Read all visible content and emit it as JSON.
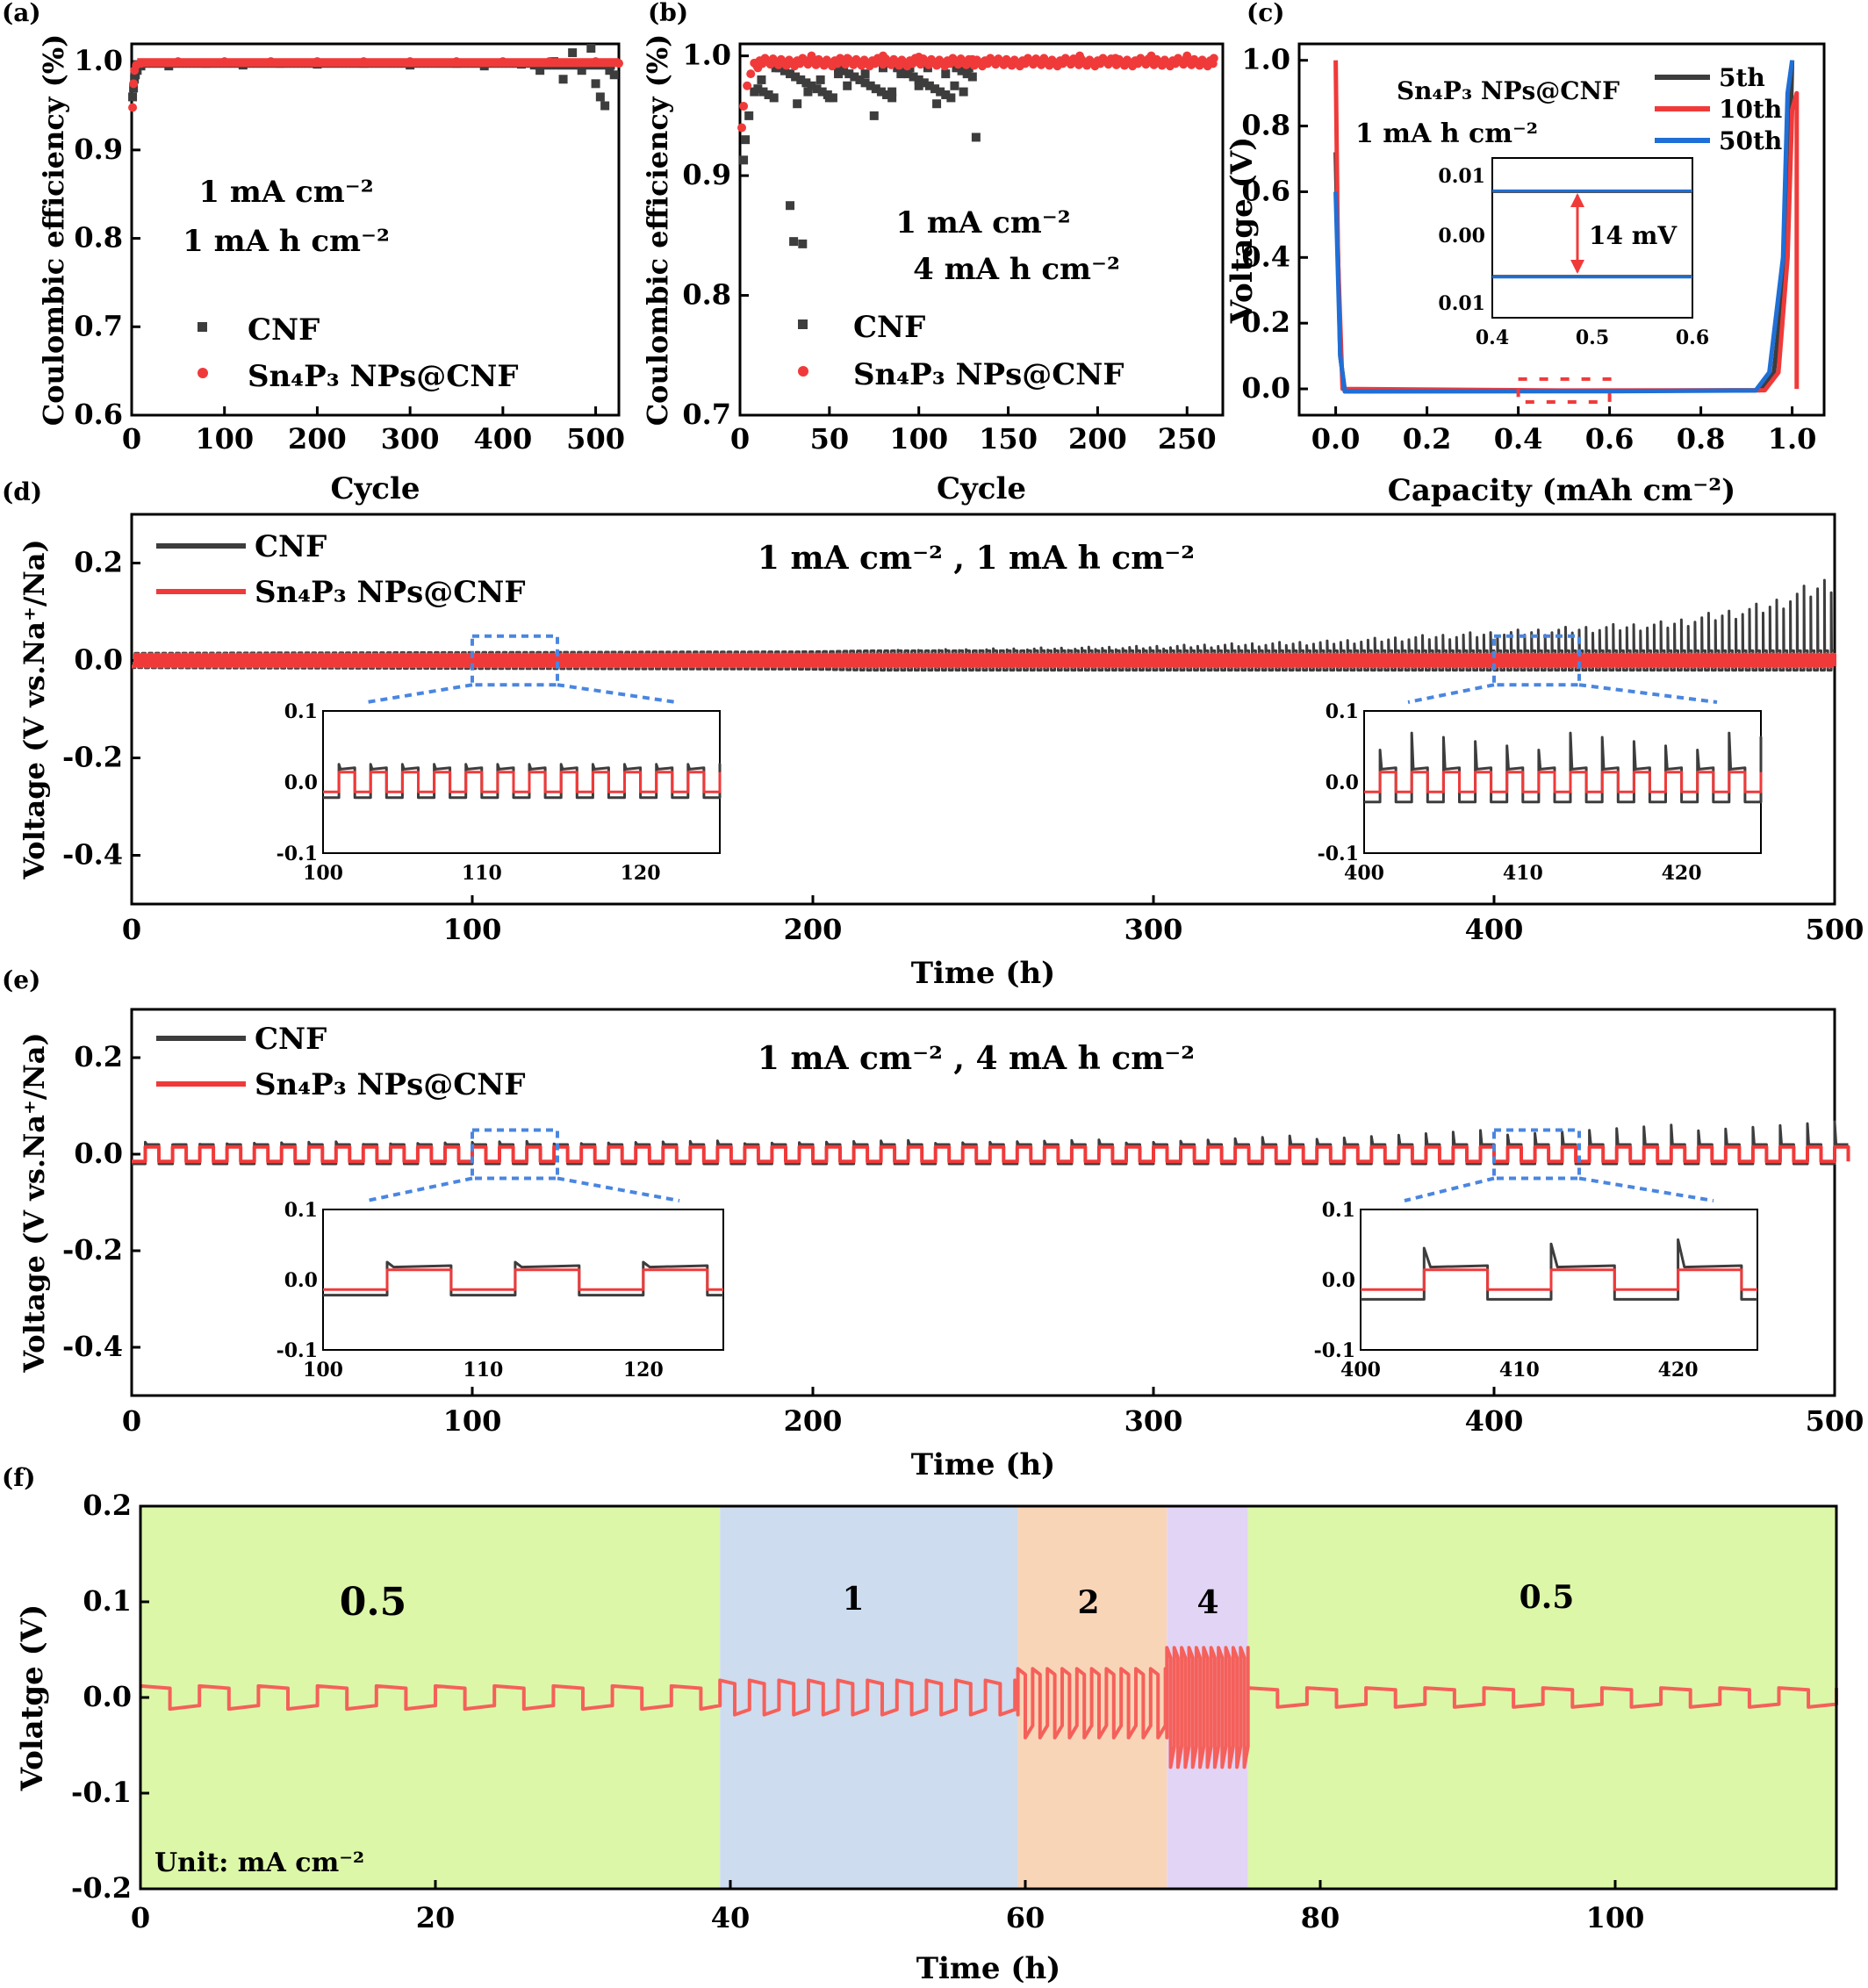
{
  "colors": {
    "cnf": "#3d3d3d",
    "sn": "#f03a3a",
    "blue": "#1f6fd6",
    "dash_blue": "#4a86e0"
  },
  "chart_data": [
    {
      "id": "a",
      "panel_label": "(a)",
      "type": "scatter",
      "xlabel": "Cycle",
      "ylabel": "Coulombic efficiency (%)",
      "xlim": [
        0,
        525
      ],
      "ylim": [
        0.6,
        1.02
      ],
      "xticks": [
        0,
        100,
        200,
        300,
        400,
        500
      ],
      "yticks": [
        0.6,
        0.7,
        0.8,
        0.9,
        1.0
      ],
      "annotations": [
        "1 mA cm⁻²",
        "1 mA h cm⁻²"
      ],
      "series": [
        {
          "name": "CNF",
          "marker": "square",
          "color": "#3d3d3d",
          "points": [
            [
              1,
              0.96
            ],
            [
              2,
              0.97
            ],
            [
              3,
              0.98
            ],
            [
              4,
              0.985
            ],
            [
              6,
              0.99
            ],
            [
              10,
              0.995
            ],
            [
              40,
              0.995
            ],
            [
              80,
              0.998
            ],
            [
              120,
              0.996
            ],
            [
              160,
              0.998
            ],
            [
              200,
              0.997
            ],
            [
              250,
              0.998
            ],
            [
              300,
              0.996
            ],
            [
              350,
              0.998
            ],
            [
              380,
              0.995
            ],
            [
              420,
              0.997
            ],
            [
              440,
              0.99
            ],
            [
              455,
              1.0
            ],
            [
              465,
              0.98
            ],
            [
              475,
              1.01
            ],
            [
              485,
              0.99
            ],
            [
              495,
              1.015
            ],
            [
              500,
              0.975
            ],
            [
              505,
              0.96
            ],
            [
              510,
              0.95
            ],
            [
              515,
              0.99
            ],
            [
              520,
              0.985
            ]
          ]
        },
        {
          "name": "Sn₄P₃ NPs@CNF",
          "marker": "circle",
          "color": "#f03a3a",
          "points": [
            [
              1,
              0.948
            ],
            [
              2,
              0.975
            ],
            [
              3,
              0.99
            ],
            [
              5,
              0.996
            ],
            [
              10,
              0.998
            ],
            [
              50,
              1.0
            ],
            [
              100,
              1.0
            ],
            [
              150,
              1.0
            ],
            [
              200,
              1.0
            ],
            [
              250,
              1.0
            ],
            [
              300,
              1.0
            ],
            [
              350,
              1.0
            ],
            [
              400,
              1.0
            ],
            [
              450,
              1.0
            ],
            [
              500,
              1.0
            ],
            [
              525,
              0.998
            ]
          ]
        }
      ]
    },
    {
      "id": "b",
      "panel_label": "(b)",
      "type": "scatter",
      "xlabel": "Cycle",
      "ylabel": "Coulombic efficiency (%)",
      "xlim": [
        0,
        270
      ],
      "ylim": [
        0.7,
        1.01
      ],
      "xticks": [
        0,
        50,
        100,
        150,
        200,
        250
      ],
      "yticks": [
        0.7,
        0.8,
        0.9,
        1.0
      ],
      "annotations": [
        "1 mA cm⁻²",
        "4 mA h cm⁻²"
      ],
      "series": [
        {
          "name": "CNF",
          "marker": "square",
          "color": "#3d3d3d",
          "points": [
            [
              2,
              0.913
            ],
            [
              3,
              0.93
            ],
            [
              5,
              0.95
            ],
            [
              8,
              0.97
            ],
            [
              12,
              0.98
            ],
            [
              20,
              0.99
            ],
            [
              28,
              0.875
            ],
            [
              30,
              0.845
            ],
            [
              35,
              0.843
            ],
            [
              32,
              0.96
            ],
            [
              38,
              0.97
            ],
            [
              45,
              0.98
            ],
            [
              50,
              0.965
            ],
            [
              55,
              0.985
            ],
            [
              60,
              0.975
            ],
            [
              70,
              0.985
            ],
            [
              75,
              0.95
            ],
            [
              80,
              0.99
            ],
            [
              85,
              0.97
            ],
            [
              90,
              0.985
            ],
            [
              95,
              0.99
            ],
            [
              100,
              0.975
            ],
            [
              105,
              0.99
            ],
            [
              110,
              0.96
            ],
            [
              115,
              0.985
            ],
            [
              120,
              0.975
            ],
            [
              125,
              0.97
            ],
            [
              128,
              0.99
            ],
            [
              132,
              0.932
            ]
          ]
        },
        {
          "name": "Sn₄P₃ NPs@CNF",
          "marker": "circle",
          "color": "#f03a3a",
          "points": [
            [
              1,
              0.94
            ],
            [
              2,
              0.958
            ],
            [
              4,
              0.975
            ],
            [
              6,
              0.985
            ],
            [
              10,
              0.99
            ],
            [
              20,
              0.995
            ],
            [
              40,
              1.0
            ],
            [
              60,
              0.998
            ],
            [
              80,
              1.0
            ],
            [
              100,
              0.999
            ],
            [
              130,
              0.997
            ],
            [
              150,
              0.995
            ],
            [
              170,
              0.998
            ],
            [
              190,
              1.0
            ],
            [
              210,
              0.998
            ],
            [
              230,
              1.0
            ],
            [
              250,
              1.0
            ],
            [
              265,
              0.998
            ]
          ]
        }
      ]
    },
    {
      "id": "c",
      "panel_label": "(c)",
      "type": "line",
      "title": "Sn₄P₃ NPs@CNF",
      "subtitle": "1 mA h cm⁻²",
      "xlabel": "Capacity (mAh cm⁻²)",
      "ylabel": "Voltage (V)",
      "xlim": [
        -0.08,
        1.07
      ],
      "ylim": [
        -0.08,
        1.05
      ],
      "xticks": [
        0.0,
        0.2,
        0.4,
        0.6,
        0.8,
        1.0
      ],
      "yticks": [
        0.0,
        0.2,
        0.4,
        0.6,
        0.8,
        1.0
      ],
      "series": [
        {
          "name": "5th",
          "color": "#3d3d3d",
          "points": [
            [
              0.0,
              0.72
            ],
            [
              0.01,
              0.1
            ],
            [
              0.02,
              -0.005
            ],
            [
              0.6,
              -0.006
            ],
            [
              0.93,
              -0.004
            ],
            [
              0.96,
              0.05
            ],
            [
              0.98,
              0.3
            ],
            [
              0.995,
              0.7
            ],
            [
              1.0,
              1.0
            ]
          ]
        },
        {
          "name": "10th",
          "color": "#f03a3a",
          "points": [
            [
              0.0,
              1.0
            ],
            [
              0.005,
              0.4
            ],
            [
              0.015,
              0.0
            ],
            [
              0.5,
              -0.005
            ],
            [
              0.94,
              -0.004
            ],
            [
              0.97,
              0.05
            ],
            [
              0.99,
              0.4
            ],
            [
              1.0,
              0.85
            ],
            [
              1.01,
              0.9
            ],
            [
              1.01,
              0.0
            ]
          ]
        },
        {
          "name": "50th",
          "color": "#1f6fd6",
          "points": [
            [
              0.0,
              0.6
            ],
            [
              0.01,
              0.1
            ],
            [
              0.02,
              -0.008
            ],
            [
              0.6,
              -0.007
            ],
            [
              0.92,
              -0.005
            ],
            [
              0.95,
              0.05
            ],
            [
              0.98,
              0.4
            ],
            [
              0.99,
              0.9
            ],
            [
              1.0,
              1.0
            ]
          ]
        }
      ],
      "inset": {
        "xlim": [
          0.4,
          0.6
        ],
        "xticks": [
          "0.4",
          "0.5",
          "0.6"
        ],
        "yticks": [
          "0.01",
          "0.00",
          "0.01"
        ],
        "annotation": "14 mV"
      }
    },
    {
      "id": "d",
      "panel_label": "(d)",
      "type": "line",
      "title": "1 mA cm⁻² , 1 mA h cm⁻²",
      "xlabel": "Time (h)",
      "ylabel": "Voltage (V vs.Na⁺/Na)",
      "xlim": [
        0,
        500
      ],
      "ylim": [
        -0.5,
        0.3
      ],
      "xticks": [
        0,
        100,
        200,
        300,
        400,
        500
      ],
      "yticks": [
        -0.4,
        -0.2,
        0.0,
        0.2
      ],
      "series": [
        {
          "name": "CNF",
          "color": "#3d3d3d"
        },
        {
          "name": "Sn₄P₃ NPs@CNF",
          "color": "#f03a3a"
        }
      ],
      "cycle_period_h": 2,
      "cnf_overpotential_v": {
        "time_h": [
          0,
          200,
          300,
          350,
          400,
          450,
          480,
          500
        ],
        "peak": [
          0.015,
          0.018,
          0.03,
          0.04,
          0.06,
          0.08,
          0.12,
          0.18
        ]
      },
      "sn_overpotential_v": 0.012,
      "insets": [
        {
          "xlim": [
            100,
            125
          ],
          "ylim": [
            -0.1,
            0.1
          ],
          "xticks": [
            "100",
            "110",
            "120"
          ],
          "yticks": [
            "0.1",
            "0.0",
            "-0.1"
          ]
        },
        {
          "xlim": [
            400,
            425
          ],
          "ylim": [
            -0.1,
            0.1
          ],
          "xticks": [
            "400",
            "410",
            "420"
          ],
          "yticks": [
            "0.1",
            "0.0",
            "-0.1"
          ]
        }
      ]
    },
    {
      "id": "e",
      "panel_label": "(e)",
      "type": "line",
      "title": "1 mA cm⁻² , 4 mA h cm⁻²",
      "xlabel": "Time (h)",
      "ylabel": "Voltage (V vs.Na⁺/Na)",
      "xlim": [
        0,
        500
      ],
      "ylim": [
        -0.5,
        0.3
      ],
      "xticks": [
        0,
        100,
        200,
        300,
        400,
        500
      ],
      "yticks": [
        -0.4,
        -0.2,
        0.0,
        0.2
      ],
      "series": [
        {
          "name": "CNF",
          "color": "#3d3d3d"
        },
        {
          "name": "Sn₄P₃ NPs@CNF",
          "color": "#f03a3a"
        }
      ],
      "cycle_period_h": 8,
      "cnf_overpotential_v": {
        "time_h": [
          0,
          300,
          400,
          500
        ],
        "peak": [
          0.025,
          0.03,
          0.05,
          0.07
        ]
      },
      "sn_overpotential_v": 0.015,
      "insets": [
        {
          "xlim": [
            100,
            125
          ],
          "ylim": [
            -0.1,
            0.1
          ],
          "xticks": [
            "100",
            "110",
            "120"
          ],
          "yticks": [
            "0.1",
            "0.0",
            "-0.1"
          ]
        },
        {
          "xlim": [
            400,
            425
          ],
          "ylim": [
            -0.1,
            0.1
          ],
          "xticks": [
            "400",
            "410",
            "420"
          ],
          "yticks": [
            "0.1",
            "0.0",
            "-0.1"
          ]
        }
      ]
    },
    {
      "id": "f",
      "panel_label": "(f)",
      "type": "line",
      "xlabel": "Time (h)",
      "ylabel": "Volatge (V)",
      "xlim": [
        0,
        115
      ],
      "ylim": [
        -0.2,
        0.2
      ],
      "xticks": [
        0,
        20,
        40,
        60,
        80,
        100
      ],
      "yticks": [
        -0.2,
        -0.1,
        0.0,
        0.1,
        0.2
      ],
      "unit_note": "Unit: mA cm⁻²",
      "regions": [
        {
          "label": "0.5",
          "x0": 0,
          "x1": 39.3,
          "color": "#dcf7a8",
          "v": 0.012,
          "period": 4
        },
        {
          "label": "1",
          "x0": 39.3,
          "x1": 59.5,
          "color": "#cddcee",
          "v": 0.018,
          "period": 2
        },
        {
          "label": "2",
          "x0": 59.5,
          "x1": 69.6,
          "color": "#f9d5b8",
          "v": 0.03,
          "period": 1
        },
        {
          "label": "4",
          "x0": 69.6,
          "x1": 75.1,
          "color": "#e2d4f5",
          "v": 0.052,
          "period": 0.5
        },
        {
          "label": "0.5",
          "x0": 75.1,
          "x1": 115,
          "color": "#dcf7a8",
          "v": 0.01,
          "period": 4
        }
      ]
    }
  ]
}
